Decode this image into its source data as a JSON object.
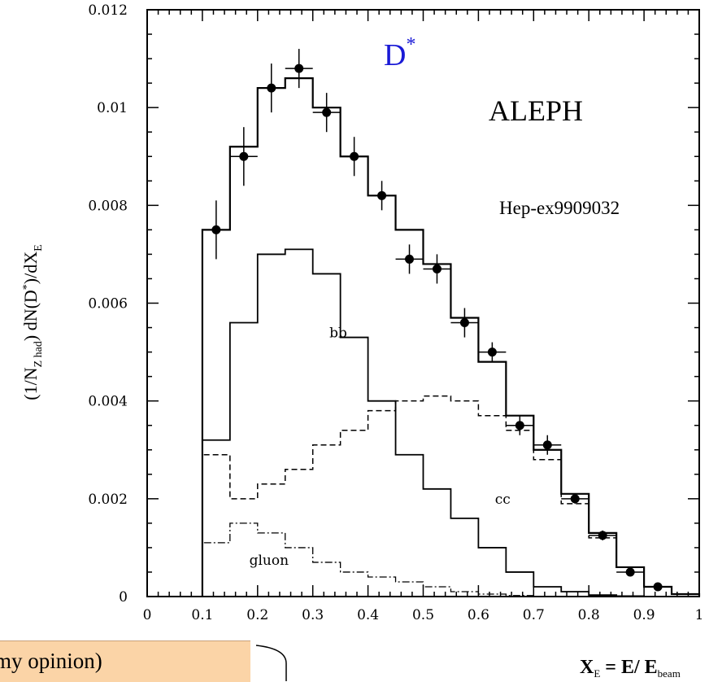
{
  "chart_data": {
    "type": "step-histogram",
    "ylabel_parts": [
      "(1/N",
      "Z had",
      ") dN(D",
      "*",
      ")/dX",
      "E"
    ],
    "xlabel_parts": [
      "X",
      "E",
      " = E/ E",
      "beam"
    ],
    "title_parts": [
      "D",
      "*"
    ],
    "experiment_label": "ALEPH",
    "reference_label": "Hep-ex9909032",
    "xlim": [
      0,
      1
    ],
    "ylim": [
      0,
      0.012
    ],
    "x_ticks": [
      "0",
      "0.1",
      "0.2",
      "0.3",
      "0.4",
      "0.5",
      "0.6",
      "0.7",
      "0.8",
      "0.9",
      "1"
    ],
    "y_ticks": [
      "0",
      "0.002",
      "0.004",
      "0.006",
      "0.008",
      "0.01",
      "0.012"
    ],
    "bin_edges": [
      0.1,
      0.15,
      0.2,
      0.25,
      0.3,
      0.35,
      0.4,
      0.45,
      0.5,
      0.55,
      0.6,
      0.65,
      0.7,
      0.75,
      0.8,
      0.85,
      0.9,
      0.95,
      1.0
    ],
    "series": [
      {
        "name": "",
        "style": "total-solid",
        "values": [
          0.0075,
          0.0092,
          0.0104,
          0.0106,
          0.01,
          0.009,
          0.0082,
          0.0075,
          0.0068,
          0.0057,
          0.0048,
          0.0037,
          0.003,
          0.0021,
          0.0013,
          0.0006,
          0.0002,
          5e-05
        ]
      },
      {
        "name": "bb",
        "style": "solid-dotted",
        "values": [
          0.0032,
          0.0056,
          0.007,
          0.0071,
          0.0066,
          0.0053,
          0.004,
          0.0029,
          0.0022,
          0.0016,
          0.001,
          0.0005,
          0.0002,
          0.0001,
          3e-05,
          1e-05,
          0,
          0
        ]
      },
      {
        "name": "cc",
        "style": "dashed",
        "values": [
          0.0029,
          0.002,
          0.0023,
          0.0026,
          0.0031,
          0.0034,
          0.0038,
          0.004,
          0.0041,
          0.004,
          0.0037,
          0.0034,
          0.0028,
          0.0019,
          0.0012,
          0.0006,
          0.0002,
          5e-05
        ]
      },
      {
        "name": "gluon",
        "style": "dash-dot",
        "values": [
          0.0011,
          0.0015,
          0.0013,
          0.001,
          0.0007,
          0.0005,
          0.0004,
          0.0003,
          0.0002,
          0.0001,
          5e-05,
          2e-05,
          0,
          0,
          0,
          0,
          0,
          0
        ]
      }
    ],
    "data_points": {
      "x": [
        0.125,
        0.175,
        0.225,
        0.275,
        0.325,
        0.375,
        0.425,
        0.475,
        0.525,
        0.575,
        0.625,
        0.675,
        0.725,
        0.775,
        0.825,
        0.875,
        0.925
      ],
      "y": [
        0.0075,
        0.009,
        0.0104,
        0.0108,
        0.0099,
        0.009,
        0.0082,
        0.0069,
        0.0067,
        0.0056,
        0.005,
        0.0035,
        0.0031,
        0.002,
        0.00125,
        0.0005,
        0.0002
      ],
      "yerr": [
        0.0006,
        0.0006,
        0.0005,
        0.0004,
        0.0004,
        0.0004,
        0.0003,
        0.0003,
        0.0003,
        0.0003,
        0.0002,
        0.0002,
        0.0002,
        0.0001,
        0.0001,
        5e-05,
        4e-05
      ]
    },
    "grid": false,
    "legend": "none"
  },
  "callout": {
    "text": "my opinion)"
  }
}
